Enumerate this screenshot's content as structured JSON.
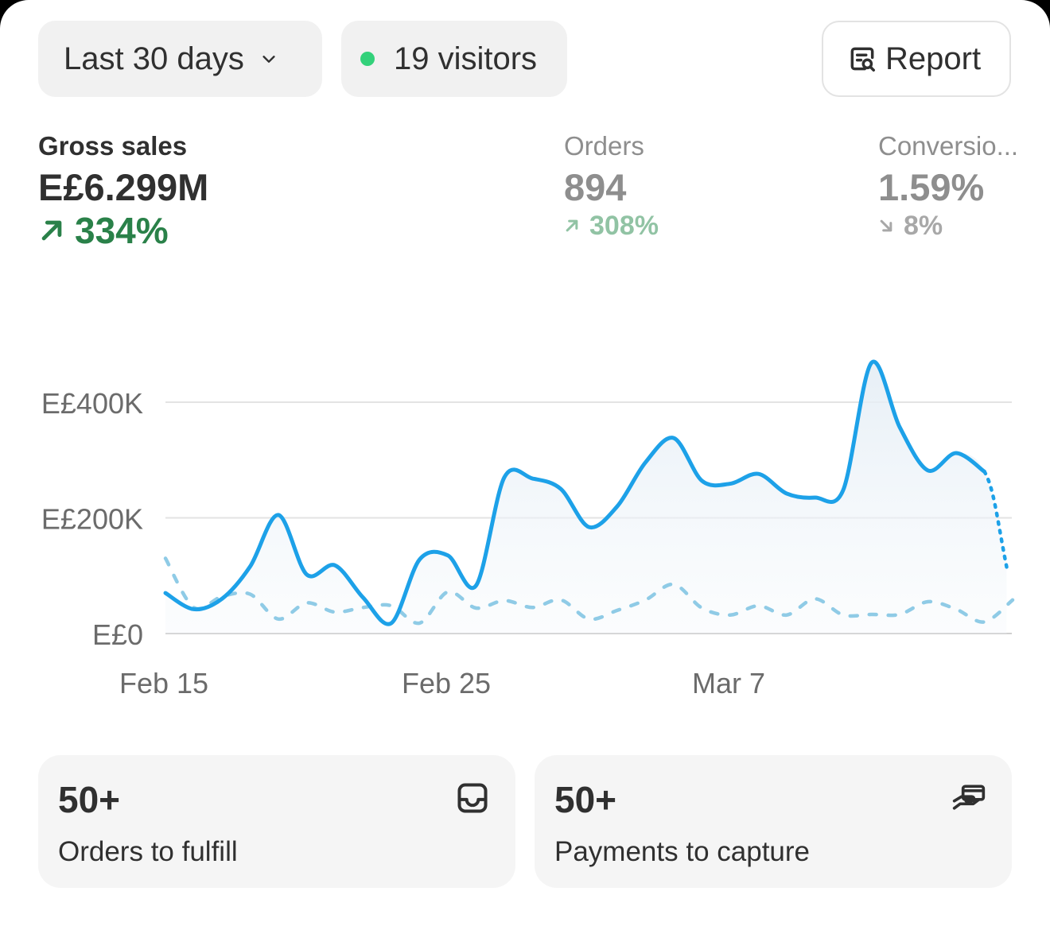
{
  "header": {
    "date_range_label": "Last 30 days",
    "visitors_label": "19 visitors",
    "visitors_dot_color": "#33d17a",
    "report_label": "Report",
    "report_icon": "report-search-icon"
  },
  "metrics": {
    "gross_sales": {
      "label": "Gross sales",
      "value": "E£6.299M",
      "delta": "334%",
      "direction": "up"
    },
    "orders": {
      "label": "Orders",
      "value": "894",
      "delta": "308%",
      "direction": "up"
    },
    "conversion": {
      "label": "Conversio...",
      "value": "1.59%",
      "delta": "8%",
      "direction": "down"
    }
  },
  "chart_data": {
    "type": "line",
    "y_tick_labels": [
      "E£400K",
      "E£200K",
      "E£0"
    ],
    "y_ticks": [
      400000,
      200000,
      0
    ],
    "ylim": [
      0,
      400000
    ],
    "x_tick_labels": [
      "Feb 15",
      "Feb 25",
      "Mar 7"
    ],
    "x_tick_indices": [
      0,
      10,
      20
    ],
    "grid": true,
    "colors": {
      "current": "#1da1e8",
      "previous": "#8fcbe6",
      "grid": "#e3e3e3"
    },
    "series": [
      {
        "style": "solid",
        "values": [
          70000,
          42000,
          60000,
          116000,
          205000,
          102000,
          118000,
          62000,
          18000,
          128000,
          135000,
          83000,
          270000,
          268000,
          250000,
          184000,
          220000,
          296000,
          338000,
          264000,
          259000,
          276000,
          242000,
          235000,
          248000,
          468000,
          357000,
          282000,
          312000,
          280000
        ],
        "projection_end": 115000
      },
      {
        "style": "dashed",
        "values": [
          130000,
          45000,
          64000,
          68000,
          25000,
          53000,
          37000,
          45000,
          48000,
          18000,
          72000,
          44000,
          57000,
          45000,
          58000,
          25000,
          40000,
          58000,
          85000,
          44000,
          32000,
          48000,
          32000,
          60000,
          32000,
          33000,
          33000,
          55000,
          42000,
          20000,
          58000
        ]
      }
    ]
  },
  "tiles": [
    {
      "count": "50+",
      "label": "Orders to fulfill",
      "icon": "inbox-icon"
    },
    {
      "count": "50+",
      "label": "Payments to capture",
      "icon": "hand-card-icon"
    }
  ]
}
